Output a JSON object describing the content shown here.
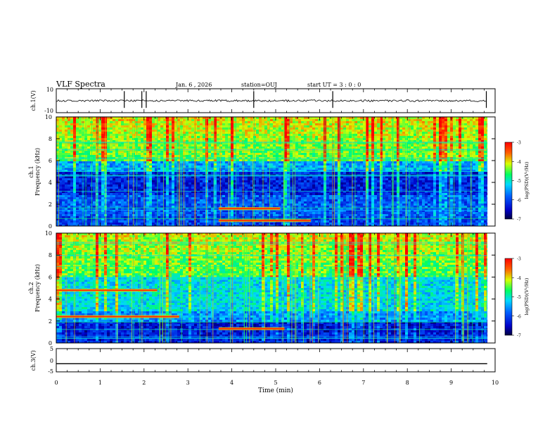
{
  "header": {
    "title": "VLF Spectra",
    "date": "Jan. 6 , 2026",
    "station": "station=OUJ",
    "start_time": "start UT =  3 : 0 : 0"
  },
  "chart_data": [
    {
      "type": "line",
      "panel": "ch1-waveform",
      "ylabel": "ch.1(V)",
      "ylim": [
        -10,
        10
      ],
      "yticks": [
        "10",
        "-10"
      ],
      "baseline": 0,
      "note": "noisy flat trace near 0 V with isolated spikes"
    },
    {
      "type": "heatmap",
      "panel": "ch1-spectrogram",
      "ylabel": "ch.1\nFrequency (kHz)",
      "ylim": [
        0,
        10
      ],
      "yticks": [
        "0",
        "2",
        "4",
        "6",
        "8",
        "10"
      ],
      "xlim": [
        0,
        10
      ],
      "colorbar": {
        "label": "log(PSD)(V²/Hz)",
        "range": [
          -7,
          -3
        ],
        "ticks": [
          "-3",
          "-4",
          "-5",
          "-6",
          "-7"
        ]
      },
      "features": [
        {
          "desc": "intense broadband noise above ~6 kHz"
        },
        {
          "desc": "band near 1.6 kHz",
          "t_start": 3.7,
          "t_end": 5.1,
          "freq": 1.6
        },
        {
          "desc": "band near 0.5 kHz",
          "t_start": 3.7,
          "t_end": 5.8,
          "freq": 0.5
        }
      ]
    },
    {
      "type": "heatmap",
      "panel": "ch2-spectrogram",
      "ylabel": "ch.2\nFrequency (kHz)",
      "ylim": [
        0,
        10
      ],
      "yticks": [
        "0",
        "2",
        "4",
        "6",
        "8",
        "10"
      ],
      "xlim": [
        0,
        10
      ],
      "colorbar": {
        "label": "log(PSD)(V²/Hz)",
        "range": [
          -7,
          -3
        ],
        "ticks": [
          "-3",
          "-4",
          "-5",
          "-6",
          "-7"
        ]
      },
      "features": [
        {
          "desc": "band near 4.8 kHz",
          "t_start": 0,
          "t_end": 2.3,
          "freq": 4.8
        },
        {
          "desc": "band near 2.4 kHz",
          "t_start": 0,
          "t_end": 2.8,
          "freq": 2.4
        },
        {
          "desc": "band near 1.3 kHz",
          "t_start": 3.7,
          "t_end": 5.2,
          "freq": 1.3
        }
      ]
    },
    {
      "type": "line",
      "panel": "ch3-waveform",
      "ylabel": "ch.3(V)",
      "ylim": [
        -5,
        5
      ],
      "yticks": [
        "5",
        "0",
        "-5"
      ],
      "baseline": -1.5
    }
  ],
  "x_axis": {
    "label": "Time (min)",
    "ticks": [
      "0",
      "1",
      "2",
      "3",
      "4",
      "5",
      "6",
      "7",
      "8",
      "9",
      "10"
    ],
    "range": [
      0,
      10
    ],
    "data_end": 9.82
  }
}
